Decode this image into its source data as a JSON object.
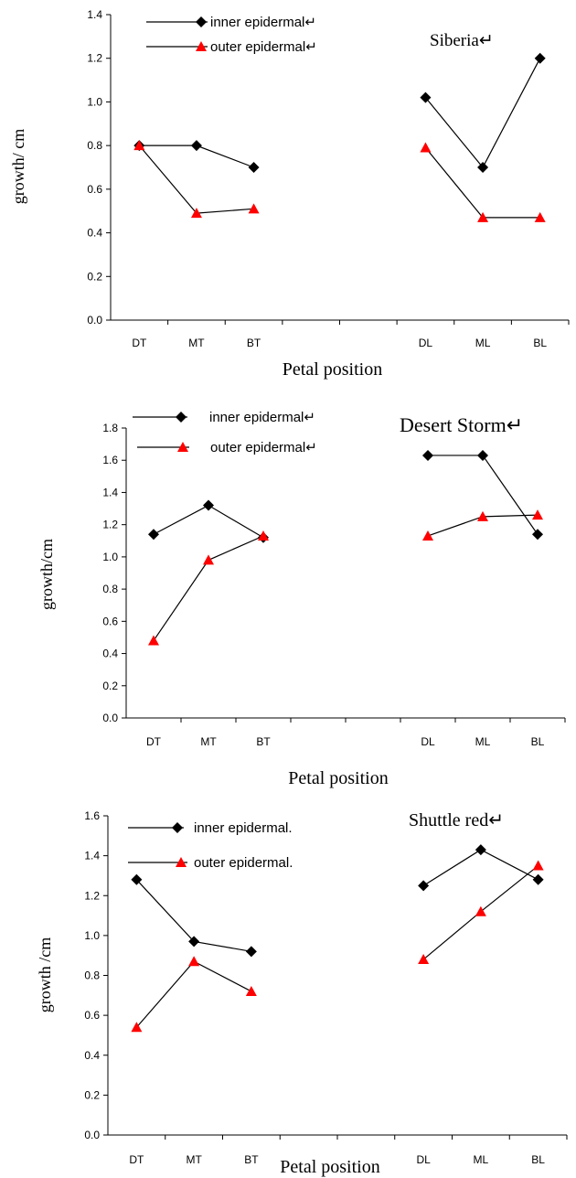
{
  "chart_data": [
    {
      "type": "line",
      "title": "Siberia↵",
      "xlabel": "Petal position",
      "ylabel": "growth/ cm",
      "categories": [
        "DT",
        "MT",
        "BT",
        "",
        "",
        "DL",
        "ML",
        "BL"
      ],
      "ylim": [
        0,
        1.4
      ],
      "yticks": [
        "0.0",
        "0.2",
        "0.4",
        "0.6",
        "0.8",
        "1.0",
        "1.2",
        "1.4"
      ],
      "legend_position": "top-left",
      "series": [
        {
          "name": "inner epidermal↵",
          "color": "#000000",
          "marker": "diamond",
          "segments": [
            {
              "x": [
                0,
                1,
                2
              ],
              "y": [
                0.8,
                0.8,
                0.7
              ]
            },
            {
              "x": [
                5,
                6,
                7
              ],
              "y": [
                1.02,
                0.7,
                1.2
              ]
            }
          ]
        },
        {
          "name": "outer epidermal↵",
          "color": "#ff0000",
          "marker": "triangle",
          "segments": [
            {
              "x": [
                0,
                1,
                2
              ],
              "y": [
                0.8,
                0.49,
                0.51
              ]
            },
            {
              "x": [
                5,
                6,
                7
              ],
              "y": [
                0.79,
                0.47,
                0.47
              ]
            }
          ]
        }
      ]
    },
    {
      "type": "line",
      "title": "Desert Storm↵",
      "xlabel": "Petal position",
      "ylabel": "growth/cm",
      "categories": [
        "DT",
        "MT",
        "BT",
        "",
        "",
        "DL",
        "ML",
        "BL"
      ],
      "ylim": [
        0,
        1.8
      ],
      "yticks": [
        "0.0",
        "0.2",
        "0.4",
        "0.6",
        "0.8",
        "1.0",
        "1.2",
        "1.4",
        "1.6",
        "1.8"
      ],
      "legend_position": "top-left",
      "series": [
        {
          "name": "inner epidermal↵",
          "color": "#000000",
          "marker": "diamond",
          "segments": [
            {
              "x": [
                0,
                1,
                2
              ],
              "y": [
                1.14,
                1.32,
                1.12
              ]
            },
            {
              "x": [
                5,
                6,
                7
              ],
              "y": [
                1.63,
                1.63,
                1.14
              ]
            }
          ]
        },
        {
          "name": "outer epidermal↵",
          "color": "#ff0000",
          "marker": "triangle",
          "segments": [
            {
              "x": [
                0,
                1,
                2
              ],
              "y": [
                0.48,
                0.98,
                1.13
              ]
            },
            {
              "x": [
                5,
                6,
                7
              ],
              "y": [
                1.13,
                1.25,
                1.26
              ]
            }
          ]
        }
      ]
    },
    {
      "type": "line",
      "title": "Shuttle red↵",
      "xlabel": "Petal position",
      "ylabel": "growth /cm",
      "categories": [
        "DT",
        "MT",
        "BT",
        "",
        "",
        "DL",
        "ML",
        "BL"
      ],
      "ylim": [
        0,
        1.6
      ],
      "yticks": [
        "0.0",
        "0.2",
        "0.4",
        "0.6",
        "0.8",
        "1.0",
        "1.2",
        "1.4",
        "1.6"
      ],
      "legend_position": "top-left",
      "series": [
        {
          "name": "inner epidermal.",
          "color": "#000000",
          "marker": "diamond",
          "segments": [
            {
              "x": [
                0,
                1,
                2
              ],
              "y": [
                1.28,
                0.97,
                0.92
              ]
            },
            {
              "x": [
                5,
                6,
                7
              ],
              "y": [
                1.25,
                1.43,
                1.28
              ]
            }
          ]
        },
        {
          "name": "outer epidermal.",
          "color": "#ff0000",
          "marker": "triangle",
          "segments": [
            {
              "x": [
                0,
                1,
                2
              ],
              "y": [
                0.54,
                0.87,
                0.72
              ]
            },
            {
              "x": [
                5,
                6,
                7
              ],
              "y": [
                0.88,
                1.12,
                1.35
              ]
            }
          ]
        }
      ]
    }
  ]
}
